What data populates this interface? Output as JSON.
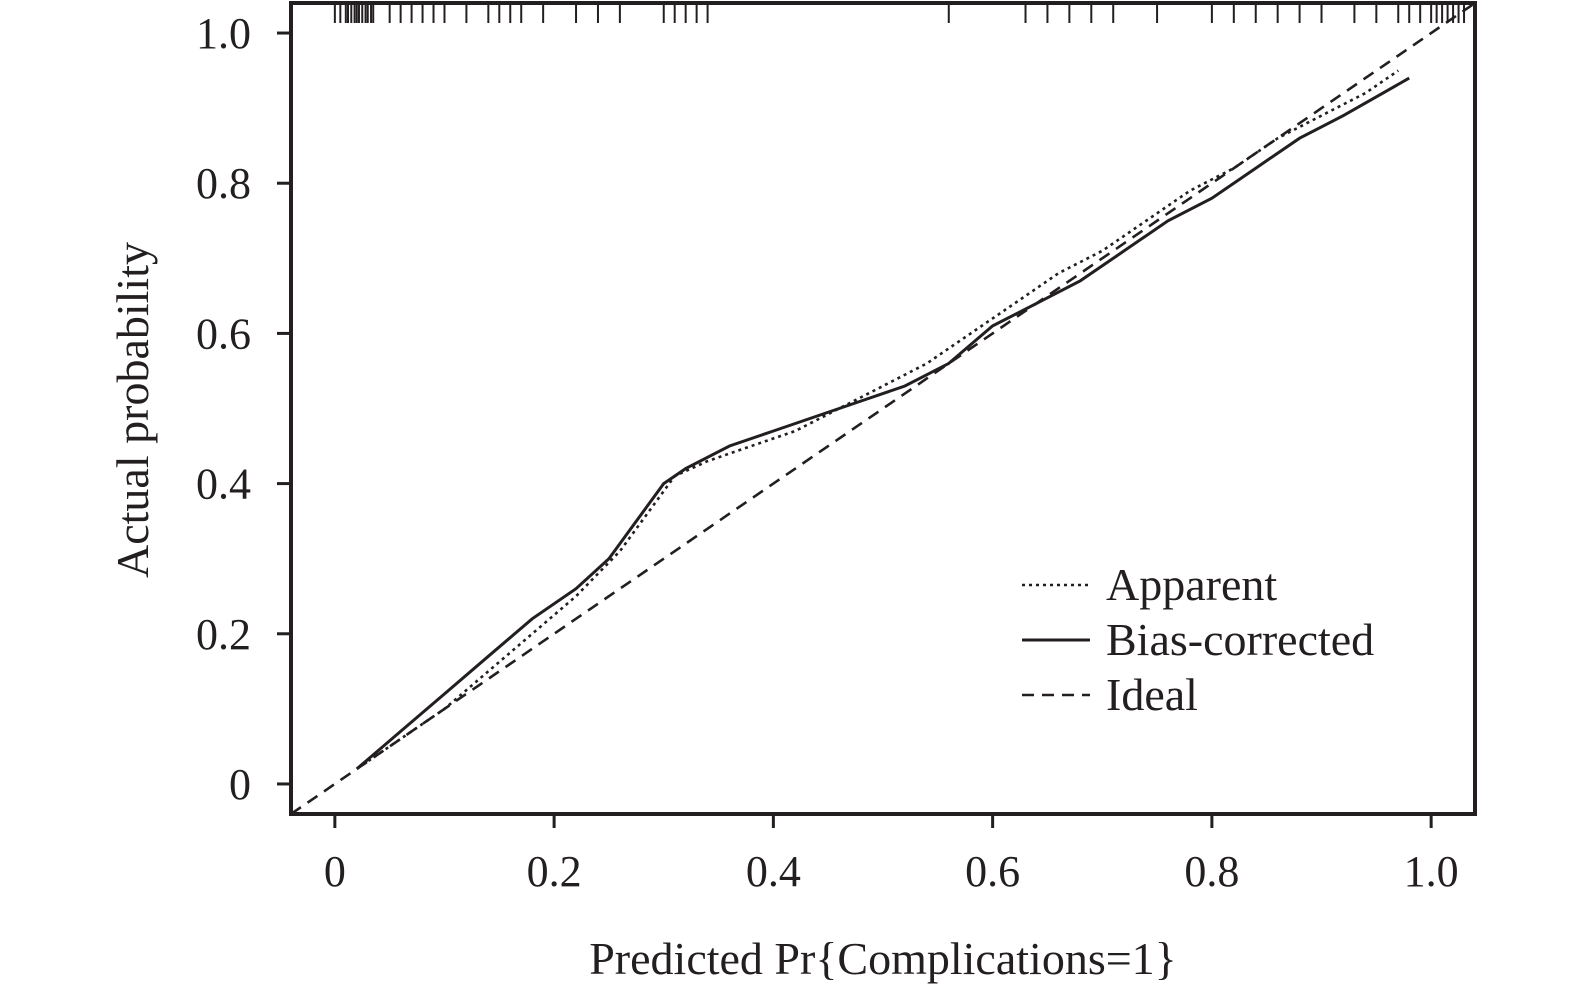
{
  "chart_data": {
    "type": "line",
    "xlabel": "Predicted Pr{Complications=1}",
    "ylabel": "Actual probability",
    "xlim": [
      -0.04,
      1.04
    ],
    "ylim": [
      -0.04,
      1.04
    ],
    "x_ticks": [
      0,
      0.2,
      0.4,
      0.6,
      0.8,
      1.0
    ],
    "x_tick_labels": [
      "0",
      "0.2",
      "0.4",
      "0.6",
      "0.8",
      "1.0"
    ],
    "y_ticks": [
      0,
      0.2,
      0.4,
      0.6,
      0.8,
      1.0
    ],
    "y_tick_labels": [
      "0",
      "0.2",
      "0.4",
      "0.6",
      "0.8",
      "1.0"
    ],
    "grid": false,
    "legend_position": "bottom-right",
    "series": [
      {
        "name": "Apparent",
        "style": "dotted",
        "x": [
          0.02,
          0.06,
          0.1,
          0.14,
          0.18,
          0.22,
          0.26,
          0.29,
          0.31,
          0.34,
          0.38,
          0.42,
          0.46,
          0.5,
          0.54,
          0.58,
          0.62,
          0.66,
          0.7,
          0.74,
          0.78,
          0.82,
          0.86,
          0.9,
          0.94,
          0.97
        ],
        "y": [
          0.02,
          0.06,
          0.1,
          0.15,
          0.2,
          0.25,
          0.31,
          0.37,
          0.41,
          0.43,
          0.45,
          0.47,
          0.5,
          0.53,
          0.56,
          0.6,
          0.64,
          0.68,
          0.71,
          0.75,
          0.79,
          0.82,
          0.86,
          0.89,
          0.92,
          0.95
        ]
      },
      {
        "name": "Bias-corrected",
        "style": "solid",
        "x": [
          0.02,
          0.06,
          0.1,
          0.14,
          0.18,
          0.22,
          0.25,
          0.28,
          0.3,
          0.32,
          0.36,
          0.4,
          0.44,
          0.48,
          0.52,
          0.56,
          0.6,
          0.64,
          0.68,
          0.72,
          0.76,
          0.8,
          0.84,
          0.88,
          0.92,
          0.98
        ],
        "y": [
          0.02,
          0.07,
          0.12,
          0.17,
          0.22,
          0.26,
          0.3,
          0.36,
          0.4,
          0.42,
          0.45,
          0.47,
          0.49,
          0.51,
          0.53,
          0.56,
          0.61,
          0.64,
          0.67,
          0.71,
          0.75,
          0.78,
          0.82,
          0.86,
          0.89,
          0.94
        ]
      },
      {
        "name": "Ideal",
        "style": "dashed",
        "x": [
          -0.04,
          1.04
        ],
        "y": [
          -0.04,
          1.04
        ]
      }
    ],
    "rug_x": [
      0.0,
      0.005,
      0.01,
      0.012,
      0.015,
      0.018,
      0.02,
      0.022,
      0.025,
      0.028,
      0.03,
      0.033,
      0.035,
      0.05,
      0.06,
      0.07,
      0.08,
      0.09,
      0.1,
      0.12,
      0.14,
      0.15,
      0.16,
      0.17,
      0.19,
      0.22,
      0.24,
      0.26,
      0.3,
      0.31,
      0.32,
      0.33,
      0.34,
      0.56,
      0.63,
      0.65,
      0.67,
      0.69,
      0.71,
      0.75,
      0.8,
      0.82,
      0.84,
      0.86,
      0.88,
      0.9,
      0.93,
      0.95,
      0.97,
      0.98,
      0.99,
      1.0,
      1.005,
      1.01,
      1.015,
      1.02,
      1.025,
      1.03
    ]
  }
}
